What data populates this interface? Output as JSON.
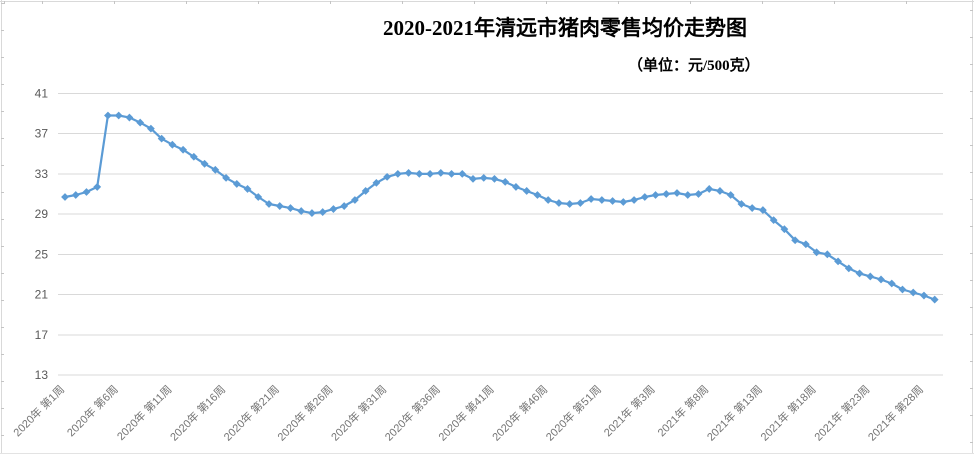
{
  "chart_data": {
    "type": "line",
    "title": "2020-2021年清远市猪肉零售均价走势图",
    "unit_label": "（单位：元/500克）",
    "legend": false,
    "grid": true,
    "x_axis": {
      "frequency": "weekly",
      "tick_interval_weeks": 5,
      "tick_labels": [
        "2020年 第1周",
        "2020年 第6周",
        "2020年 第11周",
        "2020年 第16周",
        "2020年 第21周",
        "2020年 第26周",
        "2020年 第31周",
        "2020年 第36周",
        "2020年 第41周",
        "2020年 第46周",
        "2020年 第51周",
        "2021年 第3周",
        "2021年 第8周",
        "2021年 第13周",
        "2021年 第18周",
        "2021年 第23周",
        "2021年 第28周"
      ],
      "tick_point_indexes": [
        0,
        5,
        10,
        15,
        20,
        25,
        30,
        35,
        40,
        45,
        50,
        55,
        60,
        65,
        70,
        75,
        80
      ],
      "weeks_2020_count": 53,
      "weeks_2021_count": 29
    },
    "y_axis": {
      "ticks": [
        13,
        17,
        21,
        25,
        29,
        33,
        37,
        41
      ],
      "range": [
        13,
        41
      ]
    },
    "values_2020_weeks_1_to_53": [
      30.7,
      30.9,
      31.2,
      31.7,
      38.8,
      38.8,
      38.6,
      38.1,
      37.5,
      36.5,
      35.9,
      35.4,
      34.7,
      34.0,
      33.4,
      32.6,
      32.0,
      31.5,
      30.7,
      30.0,
      29.8,
      29.6,
      29.3,
      29.1,
      29.2,
      29.5,
      29.8,
      30.4,
      31.3,
      32.1,
      32.7,
      33.0,
      33.1,
      33.0,
      33.0,
      33.1,
      33.0,
      33.0,
      32.5,
      32.6,
      32.5,
      32.2,
      31.7,
      31.3,
      30.9,
      30.4,
      30.1,
      30.0,
      30.1,
      30.5,
      30.4,
      30.3,
      30.2
    ],
    "values_2021_weeks_1_to_29": [
      30.4,
      30.7,
      30.9,
      31.0,
      31.1,
      30.9,
      31.0,
      31.5,
      31.3,
      30.9,
      30.0,
      29.6,
      29.4,
      28.4,
      27.5,
      26.4,
      26.0,
      25.2,
      25.0,
      24.3,
      23.6,
      23.1,
      22.8,
      22.5,
      22.1,
      21.5,
      21.2,
      20.9,
      20.5
    ],
    "colors": {
      "line": "#5B9BD5",
      "marker": "#5B9BD5",
      "grid": "#D9D9D9",
      "axis_label_text": "#595959",
      "tick_label_text": "#757575",
      "title_text": "#000000"
    }
  }
}
